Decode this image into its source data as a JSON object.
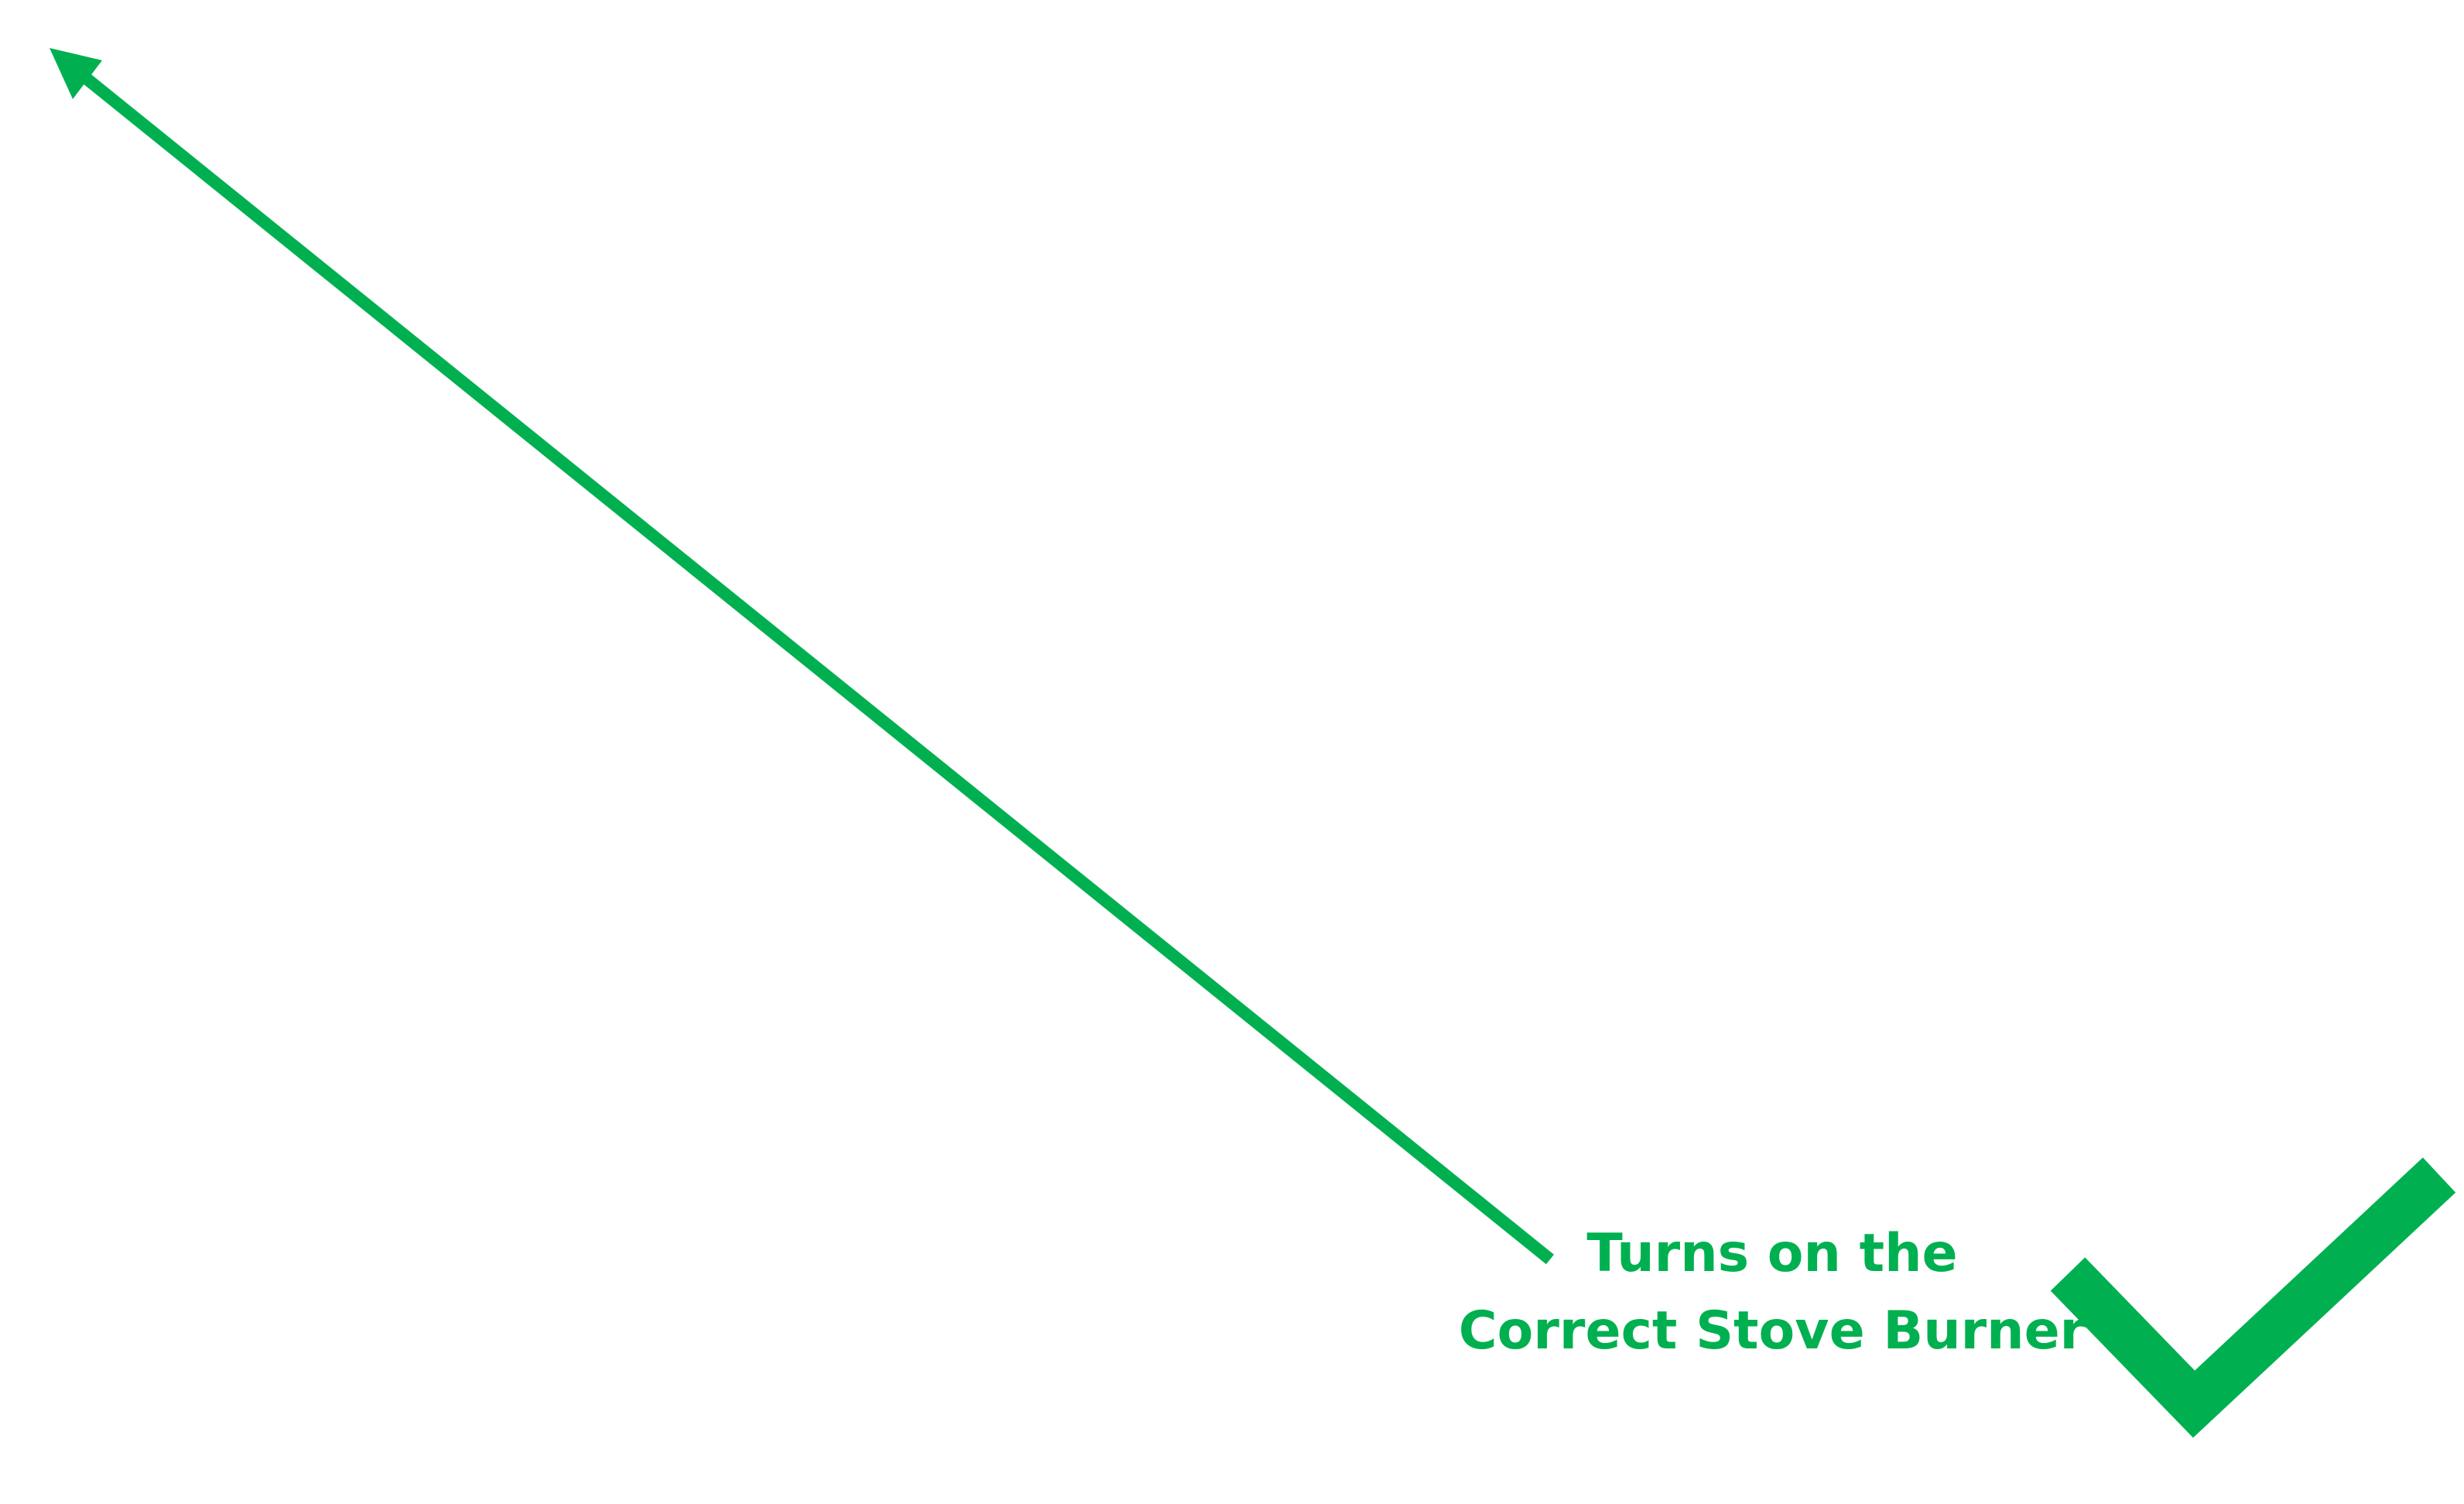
{
  "annotation": {
    "line1": "Turns on the",
    "line2": "Correct Stove Burner"
  },
  "colors": {
    "accent": "#00B050",
    "background": "#ffffff"
  },
  "icons": {
    "arrow": "arrow-up-left-icon",
    "check": "checkmark-icon"
  }
}
